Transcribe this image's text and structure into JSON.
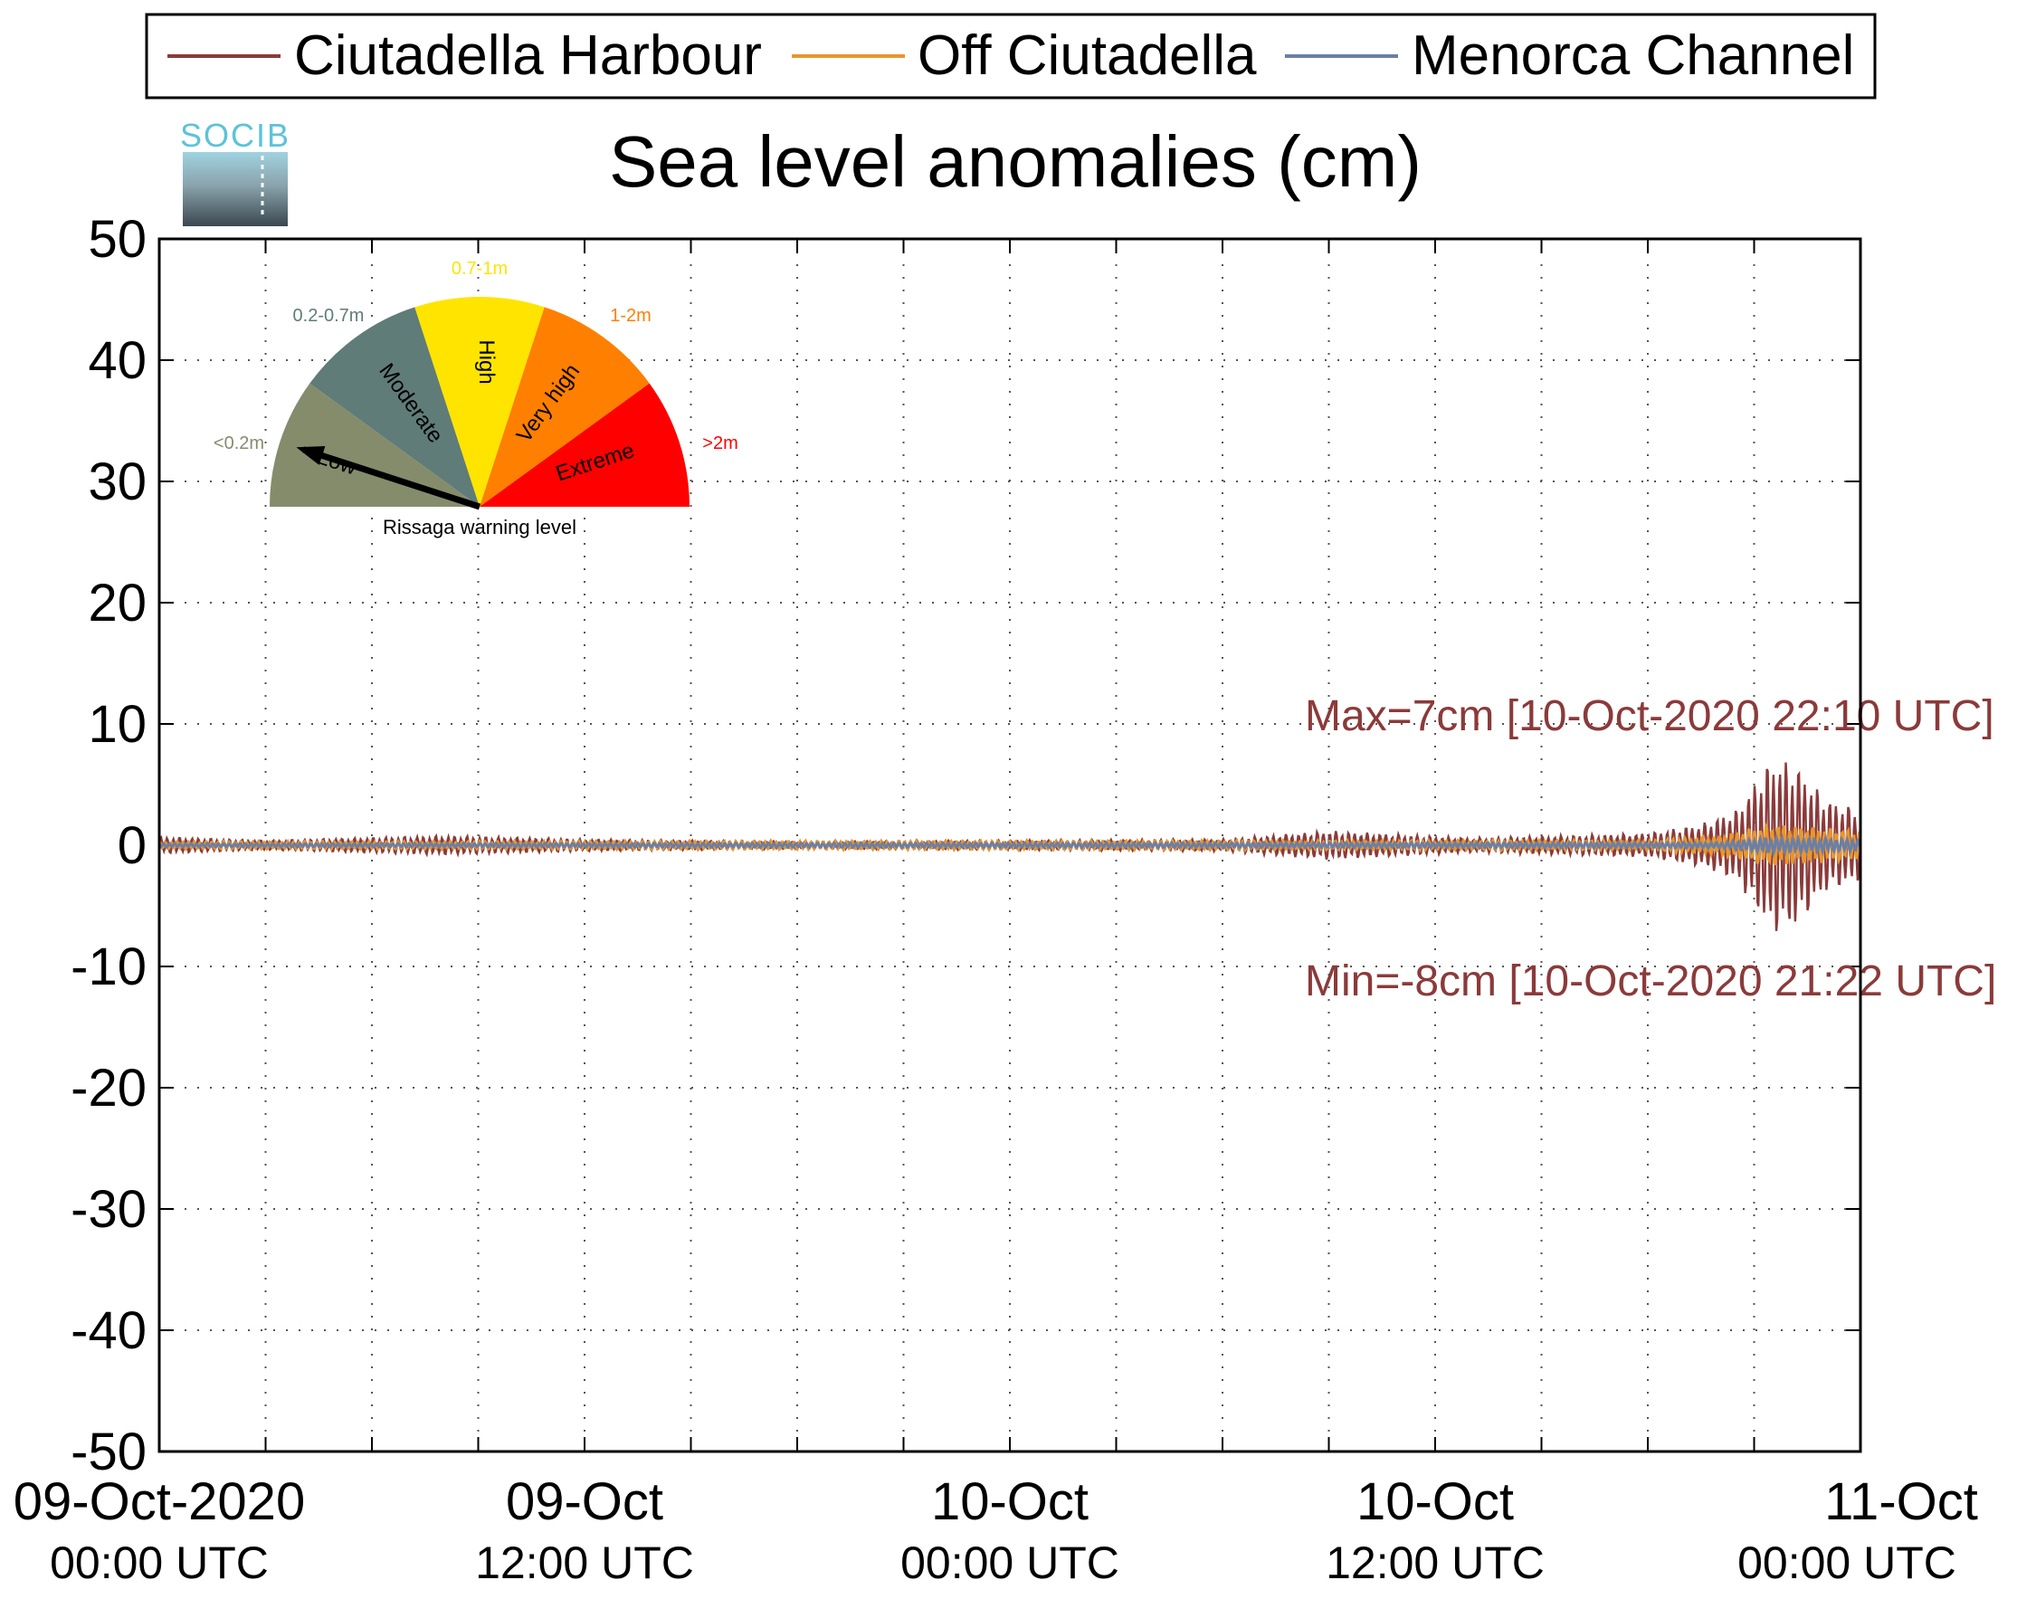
{
  "logo": {
    "text": "SOCIB"
  },
  "legend": {
    "entries": [
      "Ciutadella Harbour",
      "Off Ciutadella",
      "Menorca Channel"
    ]
  },
  "gauge": {
    "title": "Rissaga warning level",
    "segments": [
      {
        "name": "Low",
        "range": "<0.2m",
        "color": "#858c6c"
      },
      {
        "name": "Moderate",
        "range": "0.2-0.7m",
        "color": "#5f7c78"
      },
      {
        "name": "High",
        "range": "0.7-1m",
        "color": "#ffe400"
      },
      {
        "name": "Very high",
        "range": "1-2m",
        "color": "#ff7f00"
      },
      {
        "name": "Extreme",
        "range": ">2m",
        "color": "#ff0000"
      }
    ],
    "level": "Low"
  },
  "chart_data": {
    "type": "line",
    "title": "Sea level anomalies (cm)",
    "xlabel": "",
    "ylabel": "",
    "ylim": [
      -50,
      50
    ],
    "xlim": [
      "2020-10-09 00:00",
      "2020-10-11 00:00"
    ],
    "yticks": [
      50,
      40,
      30,
      20,
      10,
      0,
      -10,
      -20,
      -30,
      -40,
      -50
    ],
    "xticks": [
      {
        "at": "2020-10-09 00:00",
        "line1": "09-Oct-2020",
        "line2": "00:00 UTC"
      },
      {
        "at": "2020-10-09 12:00",
        "line1": "09-Oct",
        "line2": "12:00 UTC"
      },
      {
        "at": "2020-10-10 00:00",
        "line1": "10-Oct",
        "line2": "00:00 UTC"
      },
      {
        "at": "2020-10-10 12:00",
        "line1": "10-Oct",
        "line2": "12:00 UTC"
      },
      {
        "at": "2020-10-11 00:00",
        "line1": "11-Oct",
        "line2": "00:00 UTC"
      }
    ],
    "grid": true,
    "legend_position": "top",
    "series": [
      {
        "name": "Ciutadella Harbour",
        "color": "#8b3a3a",
        "envelope": [
          [
            "2020-10-09 00:00",
            0.7
          ],
          [
            "2020-10-09 03:00",
            0.4
          ],
          [
            "2020-10-09 08:00",
            0.8
          ],
          [
            "2020-10-09 12:00",
            0.5
          ],
          [
            "2020-10-09 18:00",
            0.3
          ],
          [
            "2020-10-10 00:00",
            0.4
          ],
          [
            "2020-10-10 06:00",
            0.5
          ],
          [
            "2020-10-10 09:00",
            1.2
          ],
          [
            "2020-10-10 13:00",
            0.6
          ],
          [
            "2020-10-10 18:00",
            1.0
          ],
          [
            "2020-10-10 19:30",
            1.8
          ],
          [
            "2020-10-10 20:30",
            3.0
          ],
          [
            "2020-10-10 21:30",
            7.5
          ],
          [
            "2020-10-10 22:10",
            7.0
          ],
          [
            "2020-10-10 23:00",
            4.0
          ],
          [
            "2020-10-11 00:00",
            3.0
          ]
        ]
      },
      {
        "name": "Off Ciutadella",
        "color": "#e8962e",
        "envelope": [
          [
            "2020-10-09 00:00",
            0.3
          ],
          [
            "2020-10-10 18:00",
            0.4
          ],
          [
            "2020-10-10 20:00",
            0.8
          ],
          [
            "2020-10-10 21:30",
            1.8
          ],
          [
            "2020-10-11 00:00",
            1.2
          ]
        ]
      },
      {
        "name": "Menorca Channel",
        "color": "#6b7fa6",
        "envelope": [
          [
            "2020-10-09 00:00",
            0.15
          ],
          [
            "2020-10-10 20:00",
            0.25
          ],
          [
            "2020-10-10 21:30",
            0.7
          ],
          [
            "2020-10-11 00:00",
            0.5
          ]
        ]
      }
    ],
    "annotations": [
      {
        "text": "Max=7cm [10-Oct-2020 22:10 UTC]",
        "series": "Ciutadella Harbour",
        "y": 7
      },
      {
        "text": "Min=-8cm [10-Oct-2020 21:22 UTC]",
        "series": "Ciutadella Harbour",
        "y": -8
      }
    ]
  }
}
